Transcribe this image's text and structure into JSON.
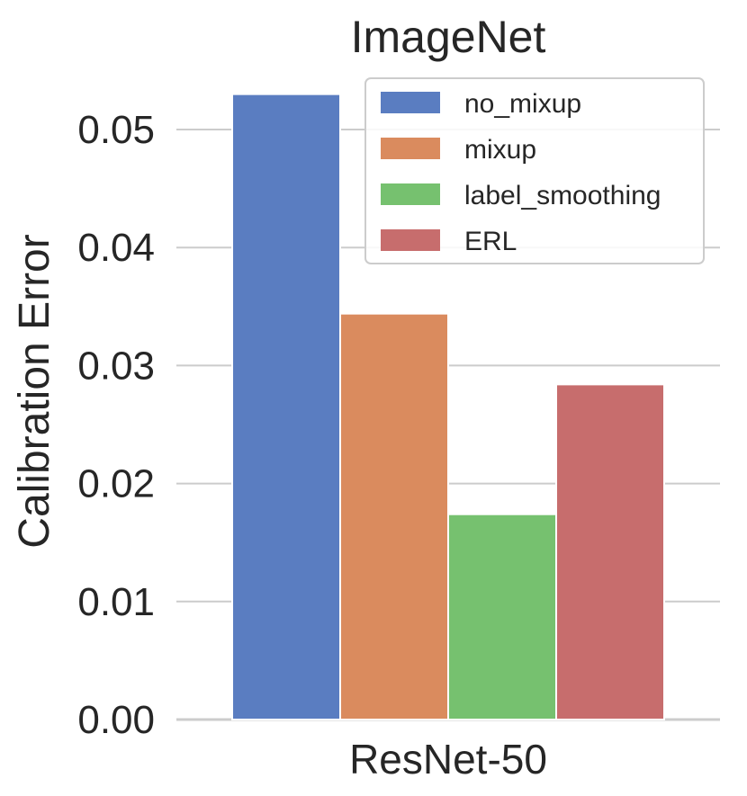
{
  "chart_data": {
    "type": "bar",
    "title": "ImageNet",
    "xlabel": "",
    "ylabel": "Calibration Error",
    "categories": [
      "ResNet-50"
    ],
    "series": [
      {
        "name": "no_mixup",
        "color": "#5a7dc1",
        "values": [
          0.053
        ]
      },
      {
        "name": "mixup",
        "color": "#da8b5e",
        "values": [
          0.0344
        ]
      },
      {
        "name": "label_smoothing",
        "color": "#76c16f",
        "values": [
          0.0174
        ]
      },
      {
        "name": "ERL",
        "color": "#c76d6d",
        "values": [
          0.0284
        ]
      }
    ],
    "ylim": [
      0,
      0.05
    ],
    "yticks": [
      "0.00",
      "0.01",
      "0.02",
      "0.03",
      "0.04",
      "0.05"
    ],
    "grid": "horizontal",
    "legend_position": "top-right"
  }
}
